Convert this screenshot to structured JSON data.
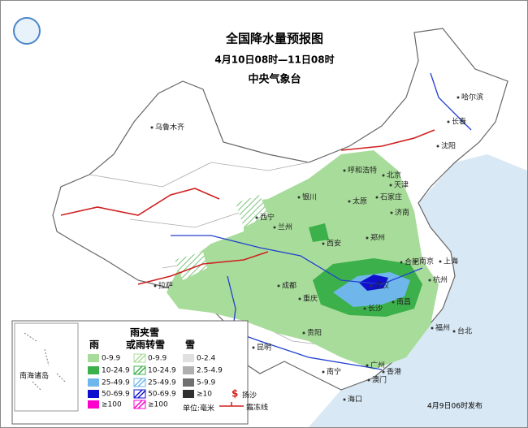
{
  "header": {
    "title": "全国降水量预报图",
    "period": "4月10日08时—11日08时",
    "issuer": "中央气象台"
  },
  "cities": [
    "乌鲁木齐",
    "哈尔滨",
    "长春",
    "沈阳",
    "呼和浩特",
    "北京",
    "天津",
    "银川",
    "太原",
    "石家庄",
    "济南",
    "西宁",
    "兰州",
    "郑州",
    "西安",
    "合肥",
    "南京",
    "上海",
    "杭州",
    "武汉",
    "成都",
    "拉萨",
    "重庆",
    "长沙",
    "南昌",
    "福州",
    "台北",
    "贵阳",
    "昆明",
    "南宁",
    "广州",
    "香港",
    "澳门",
    "海口"
  ],
  "legend": {
    "rain_title": "雨",
    "mixed_title_1": "雨夹雪",
    "mixed_title_2": "或雨转雪",
    "snow_title": "雪",
    "rain_levels": [
      "0-9.9",
      "10-24.9",
      "25-49.9",
      "50-69.9",
      "≥100"
    ],
    "mixed_levels": [
      "0-9.9",
      "10-24.9",
      "25-49.9",
      "50-69.9",
      "≥100"
    ],
    "snow_levels": [
      "0-2.4",
      "2.5-4.9",
      "5-9.9",
      "≥10"
    ],
    "unit": "单位:毫米",
    "sand": "扬沙",
    "frost": "霜冻线"
  },
  "inset_label": "南海诸岛",
  "release": "4月9日06时发布"
}
